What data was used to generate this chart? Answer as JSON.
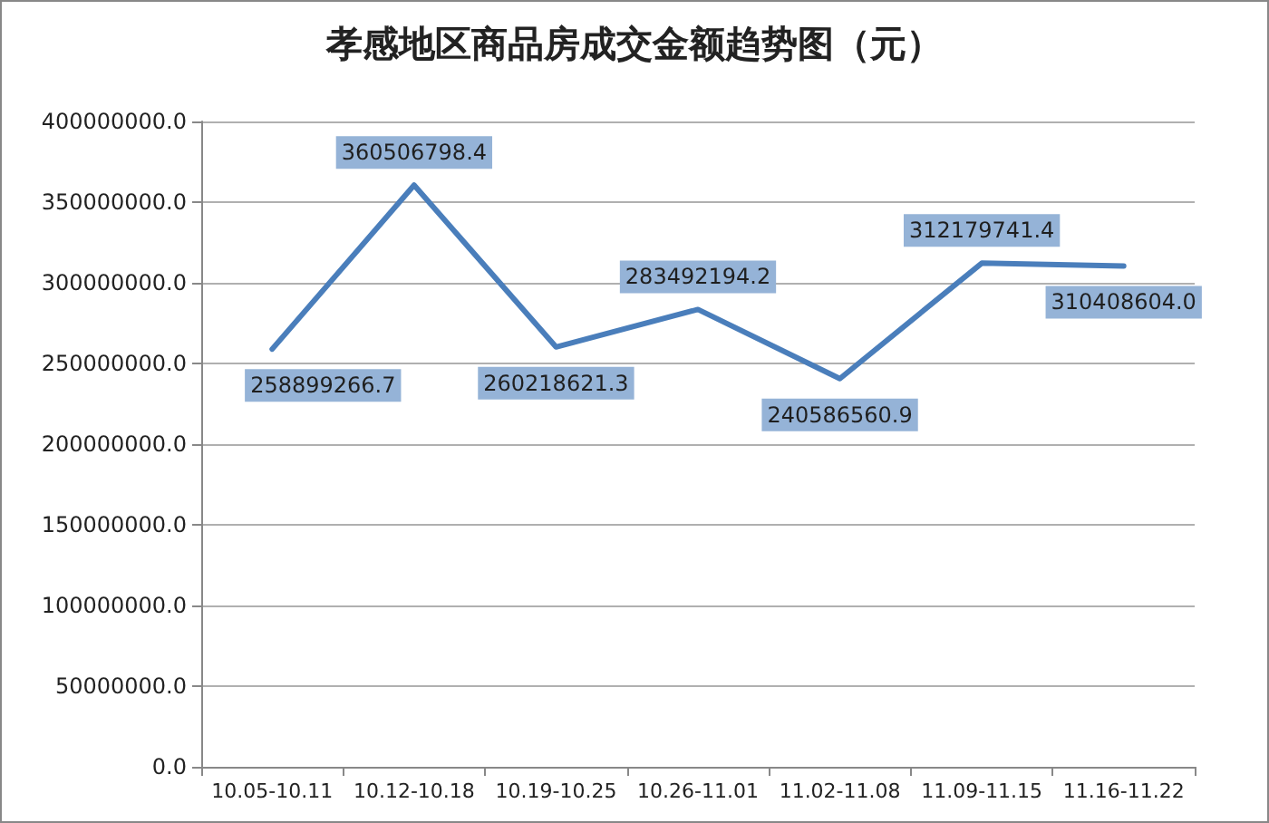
{
  "chart_data": {
    "type": "line",
    "title": "孝感地区商品房成交金额趋势图（元）",
    "categories": [
      "10.05-10.11",
      "10.12-10.18",
      "10.19-10.25",
      "10.26-11.01",
      "11.02-11.08",
      "11.09-11.15",
      "11.16-11.22"
    ],
    "series": [
      {
        "color": "#4a7ebb",
        "values": [
          258899266.7,
          360506798.4,
          260218621.3,
          283492194.2,
          240586560.9,
          312179741.4,
          310408604.0
        ],
        "value_labels": [
          "258899266.7",
          "360506798.4",
          "260218621.3",
          "283492194.2",
          "240586560.9",
          "312179741.4",
          "310408604.0"
        ]
      }
    ],
    "ylim": [
      0,
      400000000
    ],
    "yticks": [
      {
        "value": 0,
        "label": "0.0"
      },
      {
        "value": 50000000,
        "label": "50000000.0"
      },
      {
        "value": 100000000,
        "label": "100000000.0"
      },
      {
        "value": 150000000,
        "label": "150000000.0"
      },
      {
        "value": 200000000,
        "label": "200000000.0"
      },
      {
        "value": 250000000,
        "label": "250000000.0"
      },
      {
        "value": 300000000,
        "label": "300000000.0"
      },
      {
        "value": 350000000,
        "label": "350000000.0"
      },
      {
        "value": 400000000,
        "label": "400000000.0"
      }
    ],
    "grid": "y",
    "marker": "none",
    "line_style": "solid"
  }
}
